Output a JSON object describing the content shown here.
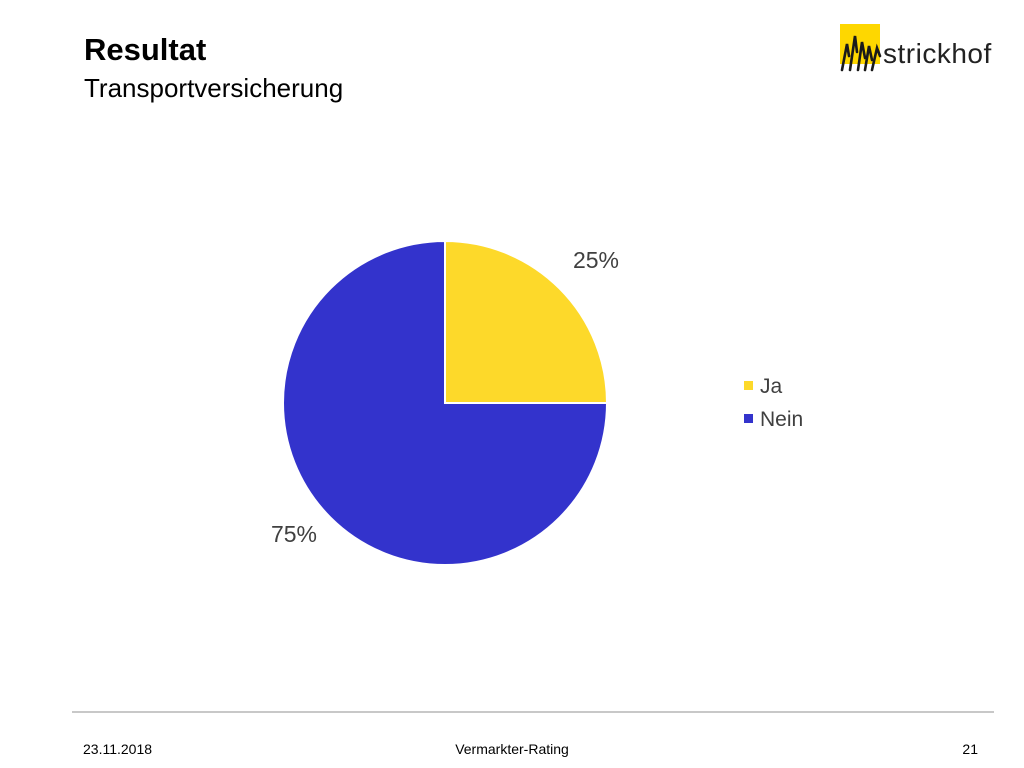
{
  "slide": {
    "title": "Resultat",
    "subtitle": "Transportversicherung"
  },
  "logo": {
    "text": "strickhof",
    "colors": {
      "square": "#fed700",
      "strokes": "#1a1a1a"
    }
  },
  "chart_data": {
    "type": "pie",
    "categories": [
      "Ja",
      "Nein"
    ],
    "values": [
      25,
      75
    ],
    "value_labels": [
      "25%",
      "75%"
    ],
    "colors": [
      "#fdd92a",
      "#3333cc"
    ],
    "legend": {
      "position": "right",
      "entries": [
        "Ja",
        "Nein"
      ]
    },
    "title": "",
    "start": "top",
    "direction": "clockwise"
  },
  "footer": {
    "date": "23.11.2018",
    "title": "Vermarkter-Rating",
    "page": "21"
  }
}
